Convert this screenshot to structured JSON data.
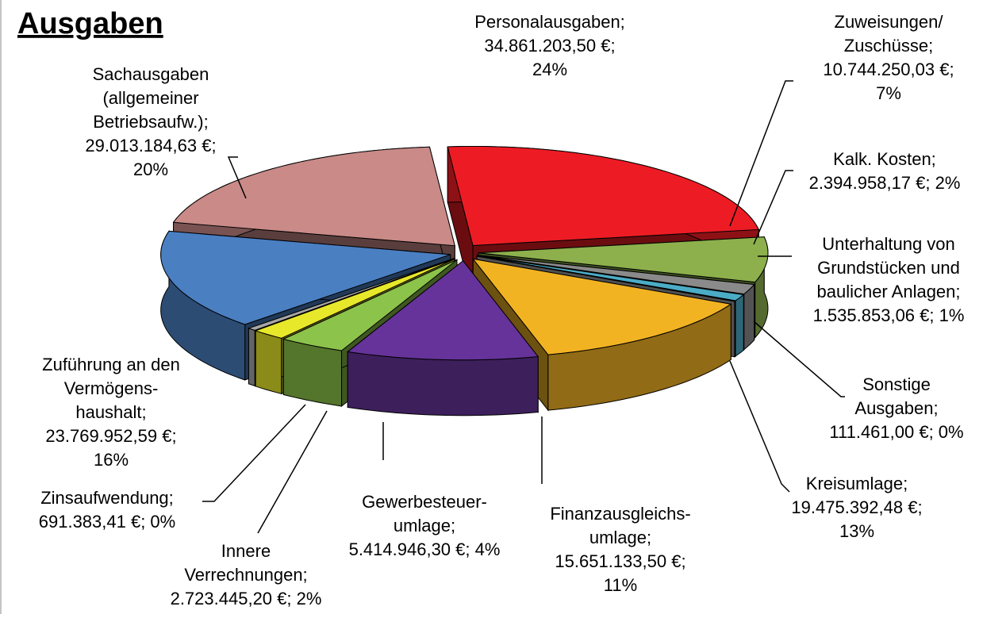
{
  "title": "Ausgaben",
  "chart_data": {
    "type": "pie",
    "three_d": true,
    "exploded": true,
    "labels": [
      [
        "Personalausgaben;",
        "34.861.203,50 €;",
        "24%"
      ],
      [
        "Zuweisungen/",
        "Zuschüsse;",
        "10.744.250,03 €;",
        "7%"
      ],
      [
        "Kalk. Kosten;",
        "2.394.958,17 €; 2%"
      ],
      [
        "Unterhaltung von",
        "Grundstücken und",
        "baulicher Anlagen;",
        "1.535.853,06 €; 1%"
      ],
      [
        "Sonstige",
        "Ausgaben;",
        "111.461,00 €; 0%"
      ],
      [
        "Kreisumlage;",
        "19.475.392,48 €;",
        "13%"
      ],
      [
        "Finanzausgleichs-",
        "umlage;",
        "15.651.133,50 €;",
        "11%"
      ],
      [
        "Gewerbesteuer-",
        "umlage;",
        "5.414.946,30 €; 4%"
      ],
      [
        "Innere",
        "Verrechnungen;",
        "2.723.445,20 €; 2%"
      ],
      [
        "Zinsaufwendung;",
        "691.383,41 €; 0%"
      ],
      [
        "Zuführung an den",
        "Vermögens-",
        "haushalt;",
        "23.769.952,59 €;",
        "16%"
      ],
      [
        "Sachausgaben",
        "(allgemeiner",
        "Betriebsaufw.);",
        "29.013.184,63 €;",
        "20%"
      ]
    ],
    "values": [
      34861203.5,
      10744250.03,
      2394958.17,
      1535853.06,
      111461.0,
      19475392.48,
      15651133.5,
      5414946.3,
      2723445.2,
      691383.41,
      23769952.59,
      29013184.63
    ],
    "colors": [
      "#ed1c24",
      "#8db04c",
      "#8a8a8a",
      "#4bacc6",
      "#b0b0b0",
      "#f2b323",
      "#66339a",
      "#8cc34a",
      "#e8e82a",
      "#a6a6a6",
      "#4a7fc2",
      "#c98a88"
    ]
  }
}
